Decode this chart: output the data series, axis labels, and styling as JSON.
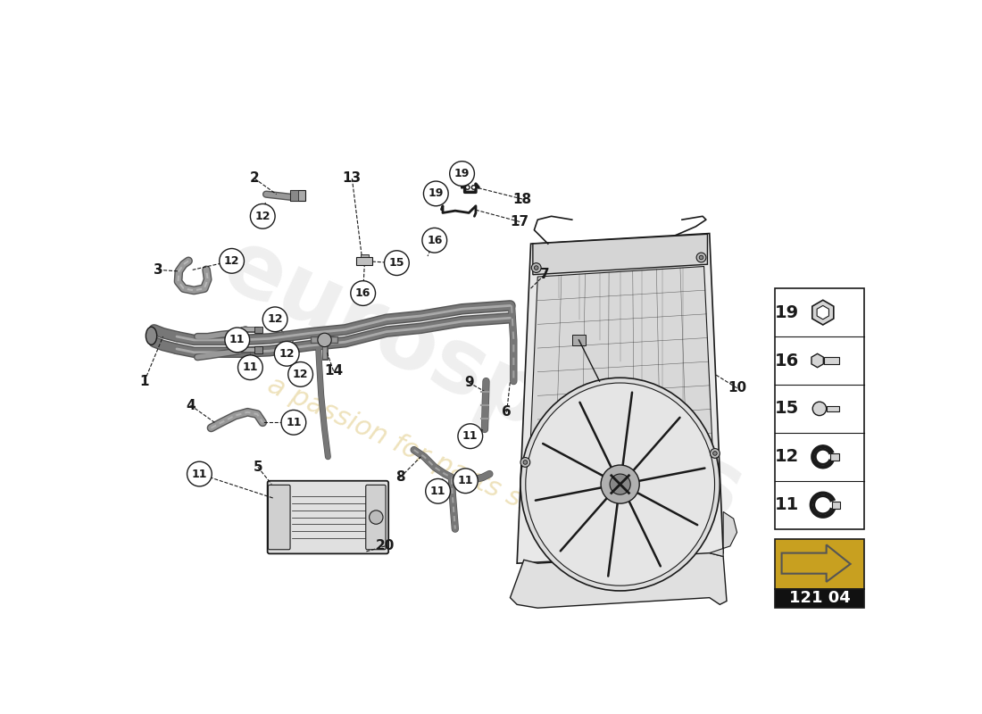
{
  "bg_color": "#ffffff",
  "diagram_number": "121 04",
  "watermark1": "eurospares",
  "watermark2": "a passion for parts since 1985",
  "lc": "#1a1a1a",
  "accent": "#c8a020",
  "parts_table": [
    {
      "num": "19",
      "shape": "hex_nut"
    },
    {
      "num": "16",
      "shape": "bolt"
    },
    {
      "num": "15",
      "shape": "screw"
    },
    {
      "num": "12",
      "shape": "clamp_small"
    },
    {
      "num": "11",
      "shape": "clamp_large"
    }
  ],
  "hose_color": "#888888",
  "hose_lw": 6,
  "hose_shadow": "#444444"
}
